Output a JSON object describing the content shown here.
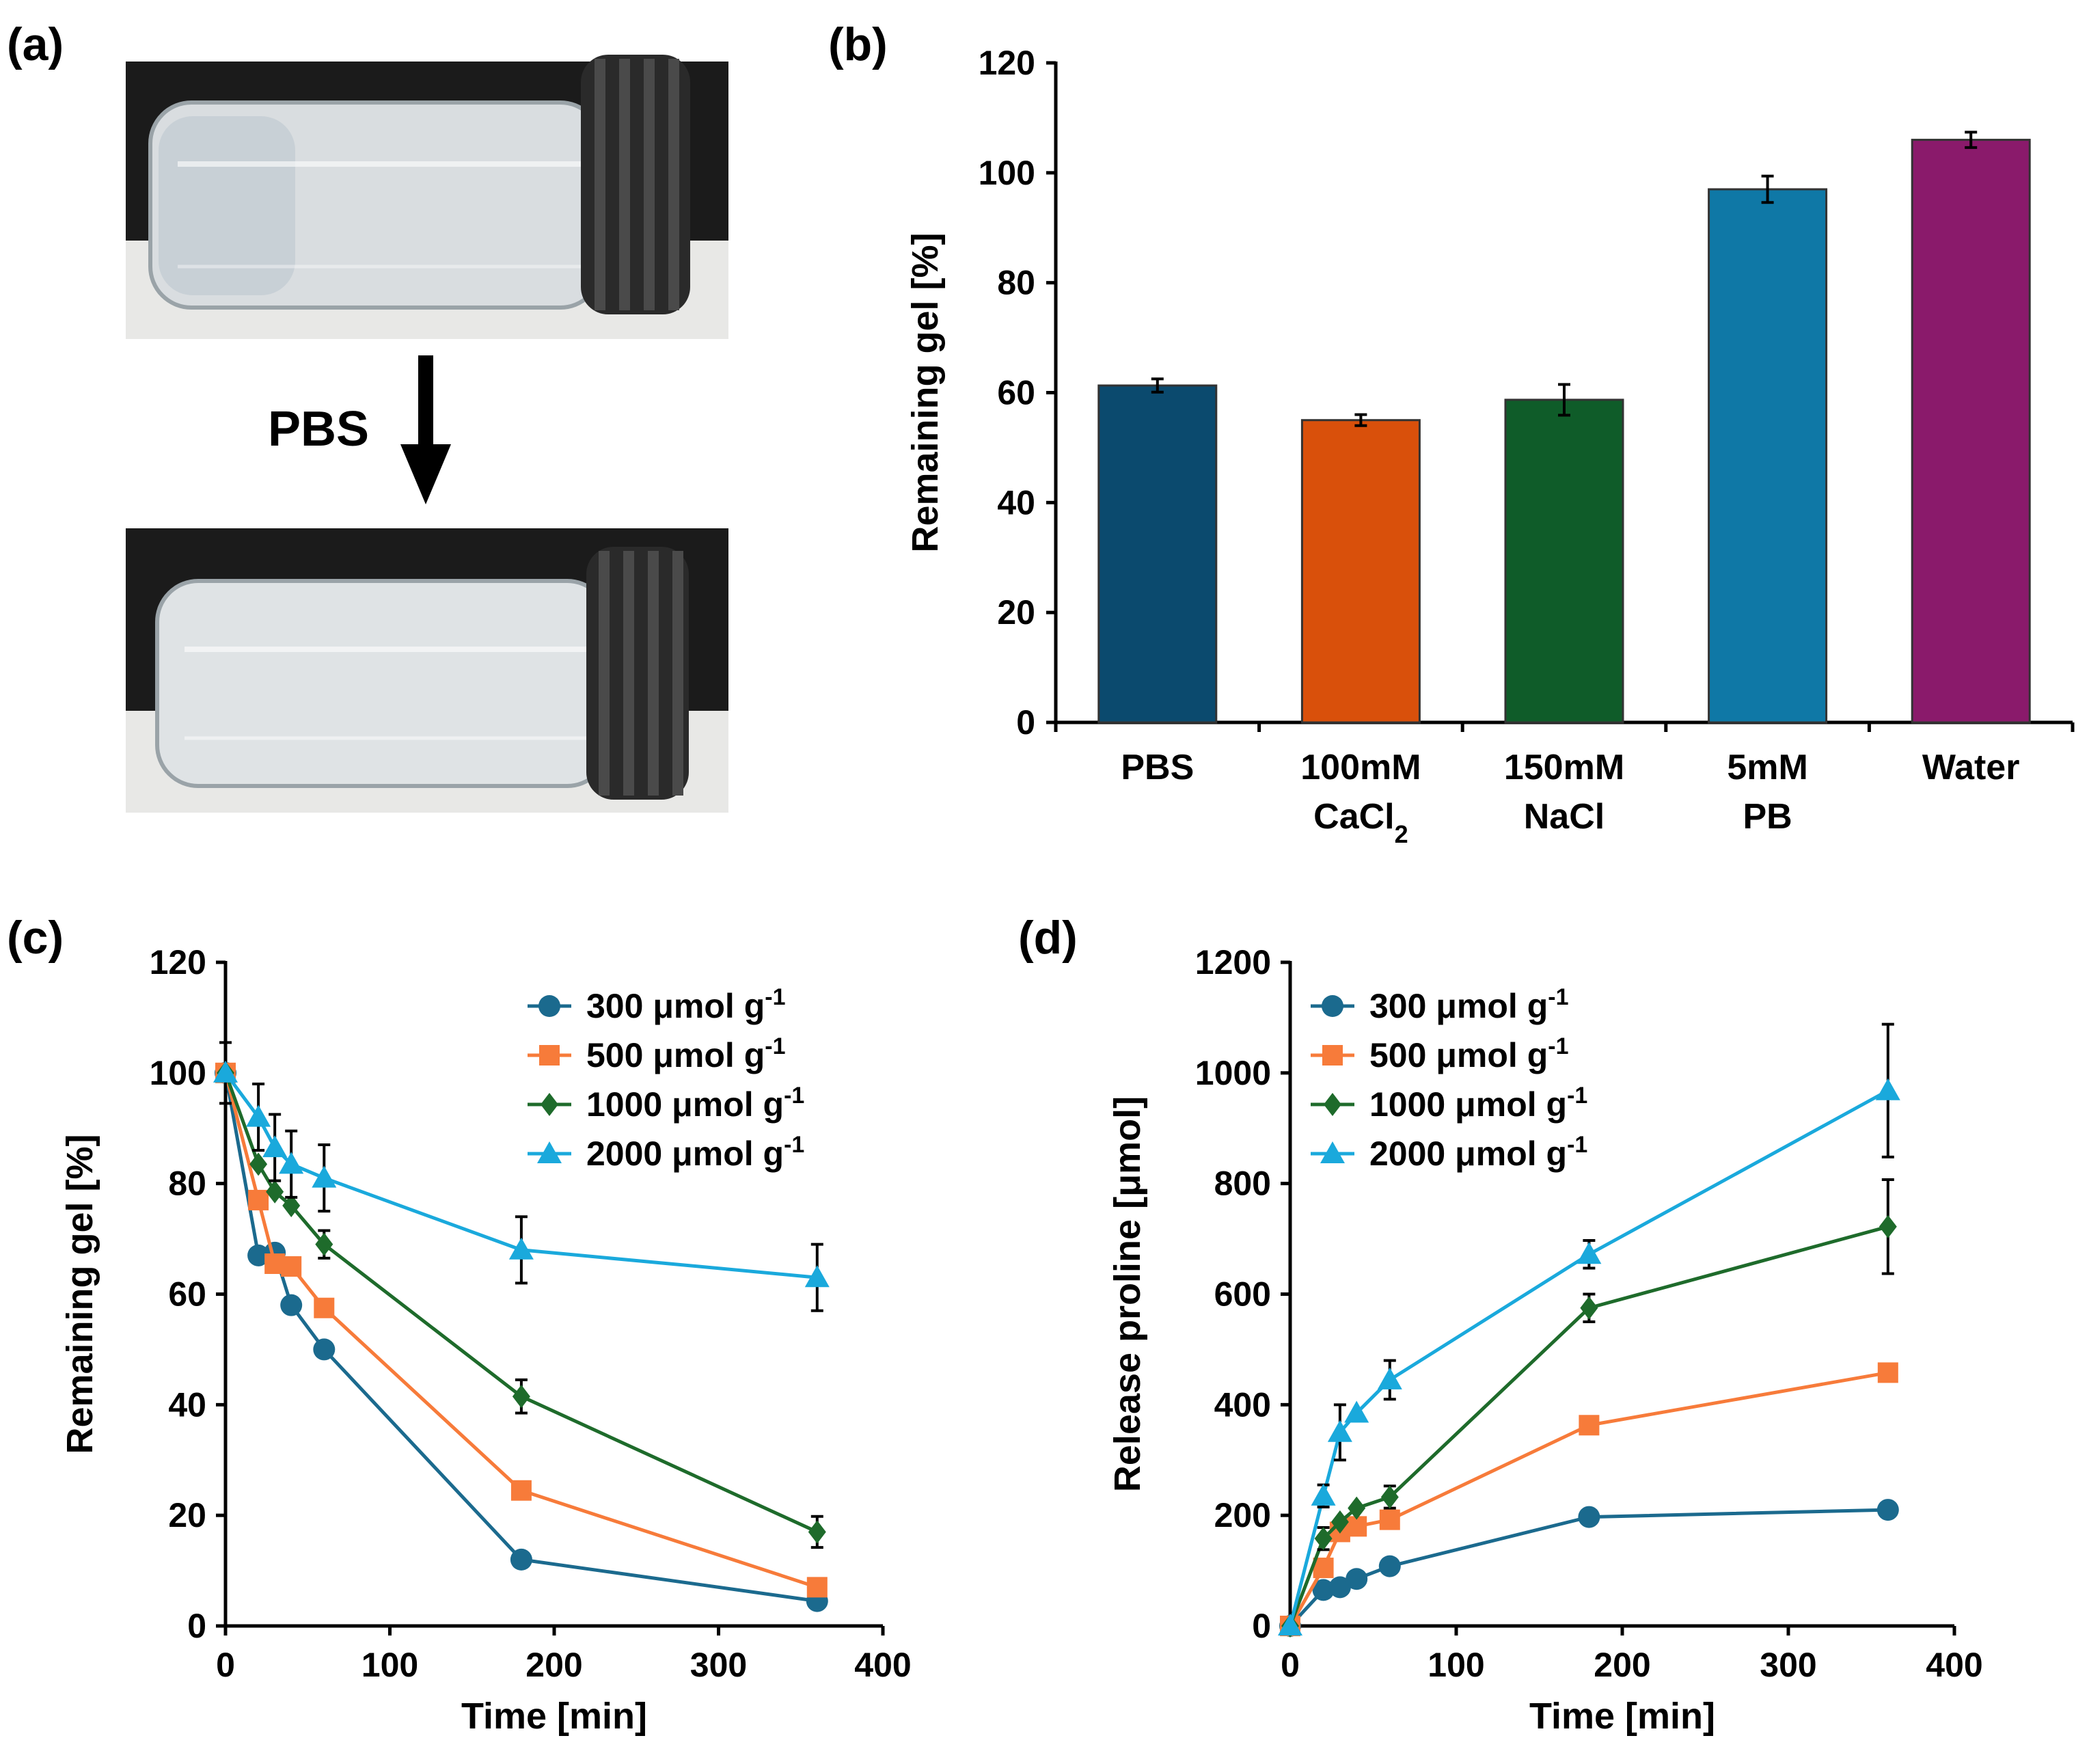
{
  "figure": {
    "panel_labels": [
      "(a)",
      "(b)",
      "(c)",
      "(d)"
    ],
    "photo": {
      "arrow_label": "PBS",
      "photo_top": "gel-vial-before",
      "photo_bottom": "gel-vial-after"
    }
  },
  "colors": {
    "pbs": "#0b4a6e",
    "cacl2": "#d9500b",
    "nacl": "#0f5c29",
    "pb": "#0f78a6",
    "water": "#8a1a6b",
    "s300": "#1b6a8e",
    "s500": "#f77b3a",
    "s1000": "#1e6b2b",
    "s2000": "#1aa9dc"
  },
  "chart_data": [
    {
      "id": "b",
      "type": "bar",
      "title": "",
      "xlabel": "",
      "ylabel": "Remaining gel [%]",
      "ylim": [
        0,
        120
      ],
      "yticks": [
        0,
        20,
        40,
        60,
        80,
        100,
        120
      ],
      "categories": [
        {
          "line1": "PBS",
          "line2": "",
          "sub": ""
        },
        {
          "line1": "100mM",
          "line2": "CaCl",
          "sub": "2"
        },
        {
          "line1": "150mM",
          "line2": "NaCl",
          "sub": ""
        },
        {
          "line1": "5mM",
          "line2": "PB",
          "sub": ""
        },
        {
          "line1": "Water",
          "line2": "",
          "sub": ""
        }
      ],
      "values": [
        61.3,
        55.0,
        58.7,
        97.0,
        106.0
      ],
      "errors": [
        1.2,
        1.0,
        2.8,
        2.4,
        1.4
      ],
      "grid": false
    },
    {
      "id": "c",
      "type": "line",
      "xlabel": "Time [min]",
      "ylabel": "Remaining gel [%]",
      "xlim": [
        0,
        400
      ],
      "ylim": [
        0,
        120
      ],
      "xticks": [
        0,
        100,
        200,
        300,
        400
      ],
      "yticks": [
        0,
        20,
        40,
        60,
        80,
        100,
        120
      ],
      "legend_position": "top-right",
      "unit": "μmol g",
      "unit_sup": "-1",
      "series": [
        {
          "name": "300",
          "marker": "circle",
          "x": [
            0,
            20,
            30,
            40,
            60,
            180,
            360
          ],
          "y": [
            100,
            67,
            67.5,
            58,
            50,
            12,
            4.5
          ],
          "err": [
            0,
            0,
            0,
            0,
            0,
            0,
            0
          ]
        },
        {
          "name": "500",
          "marker": "square",
          "x": [
            0,
            20,
            30,
            40,
            60,
            180,
            360
          ],
          "y": [
            100,
            77,
            65.5,
            65,
            57.5,
            24.5,
            7
          ],
          "err": [
            0,
            0,
            0,
            0,
            0,
            0,
            0
          ]
        },
        {
          "name": "1000",
          "marker": "diamond",
          "x": [
            0,
            20,
            30,
            40,
            60,
            180,
            360
          ],
          "y": [
            100,
            83.5,
            78.5,
            76,
            69,
            41.5,
            17
          ],
          "err": [
            0,
            0,
            0,
            0,
            2.5,
            3,
            2.8
          ]
        },
        {
          "name": "2000",
          "marker": "triangle",
          "x": [
            0,
            20,
            30,
            40,
            60,
            180,
            360
          ],
          "y": [
            100,
            92,
            86.5,
            83.5,
            81,
            68,
            63
          ],
          "err": [
            5.5,
            6,
            6,
            6,
            6,
            6,
            6
          ]
        }
      ]
    },
    {
      "id": "d",
      "type": "line",
      "xlabel": "Time [min]",
      "ylabel": "Release proline [μmol]",
      "xlim": [
        0,
        400
      ],
      "ylim": [
        0,
        1200
      ],
      "xticks": [
        0,
        100,
        200,
        300,
        400
      ],
      "yticks": [
        0,
        200,
        400,
        600,
        800,
        1000,
        1200
      ],
      "legend_position": "top-left",
      "unit": "μmol g",
      "unit_sup": "-1",
      "series": [
        {
          "name": "300",
          "marker": "circle",
          "x": [
            0,
            20,
            30,
            40,
            60,
            180,
            360
          ],
          "y": [
            0,
            65,
            70,
            85,
            108,
            197,
            210
          ],
          "err": [
            0,
            0,
            0,
            0,
            0,
            0,
            0
          ]
        },
        {
          "name": "500",
          "marker": "square",
          "x": [
            0,
            20,
            30,
            40,
            60,
            180,
            360
          ],
          "y": [
            0,
            105,
            170,
            180,
            192,
            363,
            458
          ],
          "err": [
            0,
            0,
            0,
            0,
            0,
            0,
            0
          ]
        },
        {
          "name": "1000",
          "marker": "diamond",
          "x": [
            0,
            20,
            30,
            40,
            60,
            180,
            360
          ],
          "y": [
            0,
            158,
            188,
            213,
            233,
            575,
            722
          ],
          "err": [
            0,
            20,
            0,
            0,
            20,
            25,
            85
          ]
        },
        {
          "name": "2000",
          "marker": "triangle",
          "x": [
            0,
            20,
            30,
            40,
            60,
            180,
            360
          ],
          "y": [
            0,
            235,
            350,
            385,
            445,
            672,
            968
          ],
          "err": [
            0,
            20,
            50,
            0,
            35,
            25,
            120
          ]
        }
      ]
    }
  ]
}
